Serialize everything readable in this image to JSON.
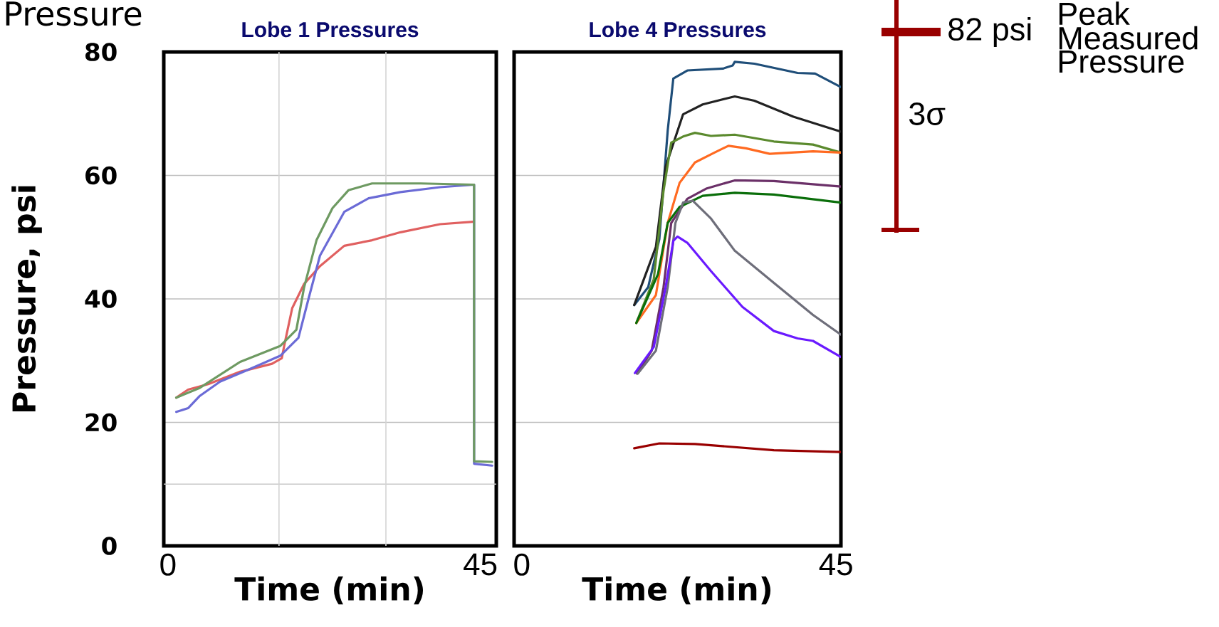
{
  "chart_data": [
    {
      "type": "line",
      "title": "Lobe 1 Pressures",
      "xlabel": "Time (min)",
      "ylabel": "Pressure, psi",
      "annotations": [
        "Pressure"
      ],
      "xlim": [
        -0.6,
        47.3
      ],
      "ylim": [
        0,
        80
      ],
      "xticks": [
        0,
        45
      ],
      "yticks": [
        0,
        20,
        40,
        60,
        80
      ],
      "grid": "y",
      "ref_lines": [
        {
          "axis": "y",
          "value": 10,
          "color": "#c8c8c8"
        },
        {
          "axis": "x",
          "value": 16,
          "color": "#d4d4d4"
        },
        {
          "axis": "x",
          "value": 31.4,
          "color": "#d4d4d4"
        }
      ],
      "series": [
        {
          "color": "#e06060",
          "x": [
            1.2,
            2.9,
            5.8,
            10.4,
            15.0,
            16.4,
            16.8,
            17.9,
            19.6,
            21.9,
            25.4,
            29.4,
            33.5,
            39.2,
            43.9
          ],
          "values": [
            24.0,
            25.3,
            26.2,
            28.2,
            29.5,
            30.4,
            32.7,
            38.5,
            42.4,
            45.3,
            48.6,
            49.5,
            50.8,
            52.1,
            52.5
          ]
        },
        {
          "color": "#6b6bd6",
          "x": [
            1.2,
            2.9,
            4.6,
            7.5,
            11.5,
            16.2,
            18.8,
            20.2,
            21.9,
            25.4,
            28.9,
            33.5,
            39.2,
            44.1,
            44.1,
            46.7
          ],
          "values": [
            21.7,
            22.3,
            24.3,
            26.6,
            28.5,
            30.8,
            33.7,
            39.8,
            47.0,
            54.1,
            56.3,
            57.3,
            58.1,
            58.5,
            13.3,
            13.0
          ]
        },
        {
          "color": "#6e9a62",
          "x": [
            1.2,
            4.6,
            10.4,
            16.2,
            18.5,
            19.6,
            21.4,
            23.7,
            26.0,
            29.4,
            36.4,
            44.1,
            44.1,
            46.7
          ],
          "values": [
            24.0,
            25.6,
            29.8,
            32.4,
            35.0,
            41.8,
            49.5,
            54.7,
            57.6,
            58.7,
            58.7,
            58.5,
            13.7,
            13.6
          ]
        }
      ]
    },
    {
      "type": "line",
      "title": "Lobe 4 Pressures",
      "xlabel": "Time (min)",
      "annotations": [
        "82 psi",
        "3σ",
        "Peak Measured Pressure"
      ],
      "xlim": [
        -1.1,
        45.7
      ],
      "ylim": [
        0,
        80
      ],
      "xticks": [
        0,
        45
      ],
      "yticks": [
        0,
        20,
        40,
        60,
        80
      ],
      "grid": "y",
      "tick_labels": "x",
      "series": [
        {
          "color": "#1f4e79",
          "x": [
            16.1,
            18.1,
            19.7,
            20.9,
            21.7,
            23.7,
            28.8,
            30.2,
            30.5,
            33.3,
            39.5,
            42.0,
            45.7
          ],
          "values": [
            39.0,
            41.9,
            49.7,
            67.3,
            75.7,
            77.0,
            77.3,
            77.8,
            78.4,
            78.1,
            76.6,
            76.5,
            74.3
          ]
        },
        {
          "color": "#222222",
          "x": [
            16.1,
            19.2,
            20.6,
            23.1,
            25.9,
            30.5,
            33.3,
            38.9,
            45.7
          ],
          "values": [
            39.0,
            48.4,
            61.4,
            69.9,
            71.5,
            72.8,
            72.1,
            69.5,
            67.1
          ]
        },
        {
          "color": "#5b8a2e",
          "x": [
            16.4,
            18.9,
            20.3,
            21.4,
            23.1,
            24.8,
            27.1,
            30.5,
            36.1,
            41.7,
            45.7
          ],
          "values": [
            36.1,
            43.2,
            57.5,
            65.3,
            66.3,
            66.9,
            66.4,
            66.6,
            65.5,
            65.0,
            63.7
          ]
        },
        {
          "color": "#ff6a21",
          "x": [
            16.4,
            19.2,
            20.9,
            22.6,
            24.8,
            27.6,
            29.6,
            32.1,
            35.5,
            41.7,
            45.7
          ],
          "values": [
            36.1,
            40.6,
            52.3,
            58.8,
            62.1,
            63.7,
            64.8,
            64.4,
            63.5,
            63.9,
            63.7
          ]
        },
        {
          "color": "#6b3068",
          "x": [
            16.5,
            18.6,
            20.3,
            21.4,
            23.7,
            26.5,
            30.5,
            36.1,
            45.7
          ],
          "values": [
            27.9,
            31.6,
            41.9,
            52.3,
            56.2,
            57.9,
            59.2,
            59.1,
            58.2
          ]
        },
        {
          "color": "#0a6e0a",
          "x": [
            16.4,
            19.5,
            20.9,
            22.6,
            25.9,
            30.5,
            36.1,
            45.7
          ],
          "values": [
            36.1,
            44.0,
            52.3,
            54.9,
            56.7,
            57.2,
            56.9,
            55.6
          ]
        },
        {
          "color": "#6e6e7a",
          "x": [
            16.6,
            19.2,
            20.9,
            22.0,
            23.1,
            24.5,
            27.1,
            30.5,
            36.1,
            41.7,
            45.7
          ],
          "values": [
            27.9,
            31.6,
            41.9,
            52.3,
            55.6,
            55.9,
            53.0,
            47.8,
            42.6,
            37.4,
            34.2
          ]
        },
        {
          "color": "#6a1aff",
          "x": [
            16.2,
            18.9,
            20.6,
            21.7,
            22.3,
            23.7,
            27.1,
            31.6,
            36.1,
            39.5,
            41.7,
            45.7
          ],
          "values": [
            28.0,
            32.2,
            41.9,
            49.4,
            50.1,
            49.1,
            44.5,
            38.7,
            34.8,
            33.6,
            33.2,
            30.6
          ]
        },
        {
          "color": "#990000",
          "x": [
            16.1,
            19.7,
            24.8,
            36.1,
            45.7
          ],
          "values": [
            15.8,
            16.6,
            16.5,
            15.5,
            15.2
          ]
        }
      ]
    }
  ]
}
